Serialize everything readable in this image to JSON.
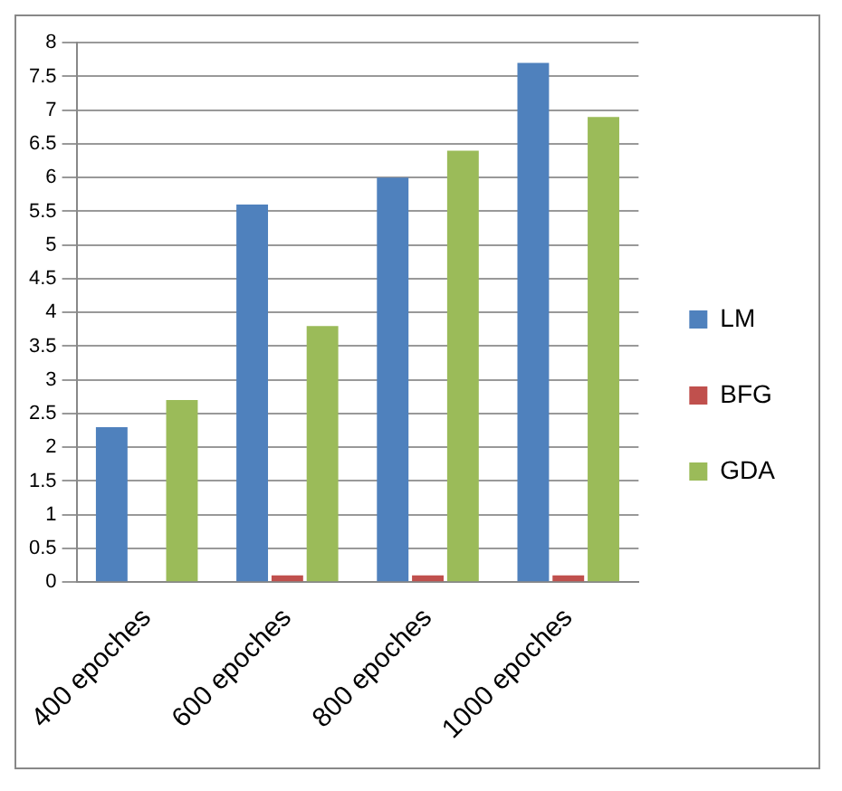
{
  "chart_data": {
    "type": "bar",
    "categories": [
      "400 epoches",
      "600 epoches",
      "800 epoches",
      "1000 epoches"
    ],
    "series": [
      {
        "name": "LM",
        "color": "#4f81bd",
        "values": [
          2.3,
          5.6,
          6.0,
          7.7
        ]
      },
      {
        "name": "BFG",
        "color": "#c0504d",
        "values": [
          0,
          0.1,
          0.1,
          0.1
        ]
      },
      {
        "name": "GDA",
        "color": "#9bbb59",
        "values": [
          2.7,
          3.8,
          6.4,
          6.9
        ]
      }
    ],
    "ylim": [
      0,
      8
    ],
    "yticks": [
      0,
      0.5,
      1,
      1.5,
      2,
      2.5,
      3,
      3.5,
      4,
      4.5,
      5,
      5.5,
      6,
      6.5,
      7,
      7.5,
      8
    ],
    "grid": "y",
    "legend": "right"
  }
}
